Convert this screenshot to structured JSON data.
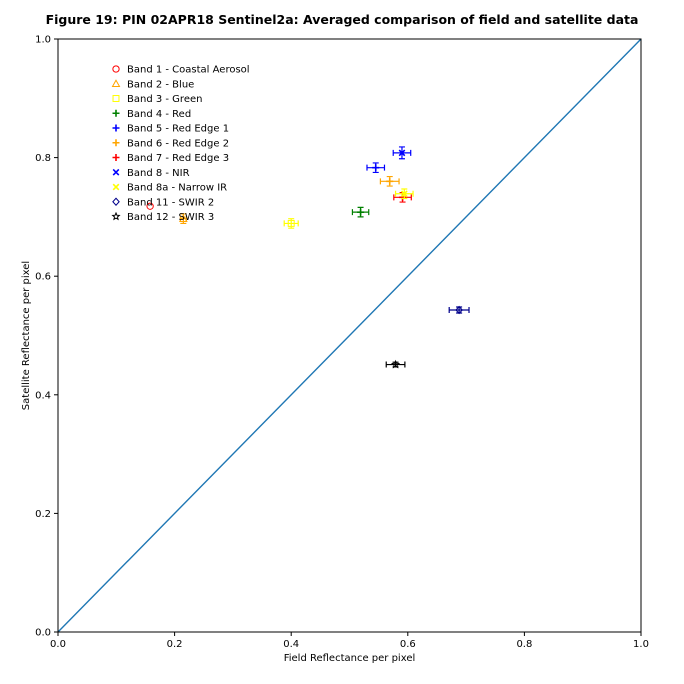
{
  "chart_data": {
    "type": "scatter",
    "title": "Figure 19: PIN 02APR18  Sentinel2a: Averaged comparison of field and satellite data",
    "xlabel": "Field Reflectance per pixel",
    "ylabel": "Satellite Reflectance per pixel",
    "xlim": [
      0.0,
      1.0
    ],
    "ylim": [
      0.0,
      1.0
    ],
    "xticks": [
      "0.0",
      "0.2",
      "0.4",
      "0.6",
      "0.8",
      "1.0"
    ],
    "yticks": [
      "0.0",
      "0.2",
      "0.4",
      "0.6",
      "0.8",
      "1.0"
    ],
    "grid": false,
    "legend_position": "upper-left",
    "reference_line": {
      "from": [
        0,
        0
      ],
      "to": [
        1,
        1
      ],
      "color": "#1f77b4"
    },
    "series": [
      {
        "name": "Band 1 - Coastal Aerosol",
        "marker": "circle",
        "color": "#ff0000",
        "x": 0.158,
        "y": 0.718,
        "xerr": 0.0,
        "yerr": 0.0
      },
      {
        "name": "Band 2 - Blue",
        "marker": "triangle",
        "color": "#ffa500",
        "x": 0.215,
        "y": 0.697,
        "xerr": 0.005,
        "yerr": 0.008
      },
      {
        "name": "Band 3 - Green",
        "marker": "square",
        "color": "#ffff00",
        "x": 0.4,
        "y": 0.689,
        "xerr": 0.012,
        "yerr": 0.008
      },
      {
        "name": "Band 4 - Red",
        "marker": "plus",
        "color": "#008000",
        "x": 0.519,
        "y": 0.708,
        "xerr": 0.014,
        "yerr": 0.008
      },
      {
        "name": "Band 5 - Red Edge 1",
        "marker": "plus",
        "color": "#0000ff",
        "x": 0.545,
        "y": 0.783,
        "xerr": 0.015,
        "yerr": 0.008
      },
      {
        "name": "Band 6 - Red Edge 2",
        "marker": "plus",
        "color": "#ffa500",
        "x": 0.569,
        "y": 0.76,
        "xerr": 0.016,
        "yerr": 0.008
      },
      {
        "name": "Band 7 - Red Edge 3",
        "marker": "plus",
        "color": "#ff0000",
        "x": 0.591,
        "y": 0.733,
        "xerr": 0.015,
        "yerr": 0.008
      },
      {
        "name": "Band 8 - NIR",
        "marker": "x",
        "color": "#0000ff",
        "x": 0.59,
        "y": 0.808,
        "xerr": 0.015,
        "yerr": 0.01
      },
      {
        "name": "Band 8a - Narrow IR",
        "marker": "x",
        "color": "#ffff00",
        "x": 0.594,
        "y": 0.739,
        "xerr": 0.015,
        "yerr": 0.008
      },
      {
        "name": "Band 11 - SWIR 2",
        "marker": "diamond",
        "color": "#00008b",
        "x": 0.688,
        "y": 0.543,
        "xerr": 0.017,
        "yerr": 0.005
      },
      {
        "name": "Band 12 - SWIR 3",
        "marker": "star",
        "color": "#000000",
        "x": 0.579,
        "y": 0.451,
        "xerr": 0.016,
        "yerr": 0.004
      }
    ]
  }
}
